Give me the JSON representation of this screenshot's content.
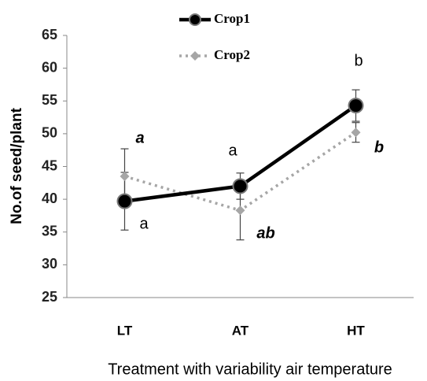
{
  "chart_data": {
    "type": "line",
    "categories": [
      "LT",
      "AT",
      "HT"
    ],
    "series": [
      {
        "name": "Crop1",
        "color": "#000000",
        "values": [
          39.7,
          42,
          54.3
        ],
        "errors": [
          4.4,
          2,
          2.4
        ]
      },
      {
        "name": "Crop2",
        "color": "#a6a6a6",
        "values": [
          43.5,
          38.3,
          50.2
        ],
        "errors": [
          4.2,
          4.5,
          1.5
        ]
      }
    ],
    "ylim": [
      25,
      65
    ],
    "yticks": [
      25,
      30,
      35,
      40,
      45,
      50,
      55,
      60,
      65
    ],
    "ylabel": "No.of seed/plant",
    "xlabel": "Treatment with variability  air temperature",
    "annotations": [
      "a",
      "a",
      "a",
      "ab",
      "b",
      "b"
    ],
    "legend": "top"
  }
}
